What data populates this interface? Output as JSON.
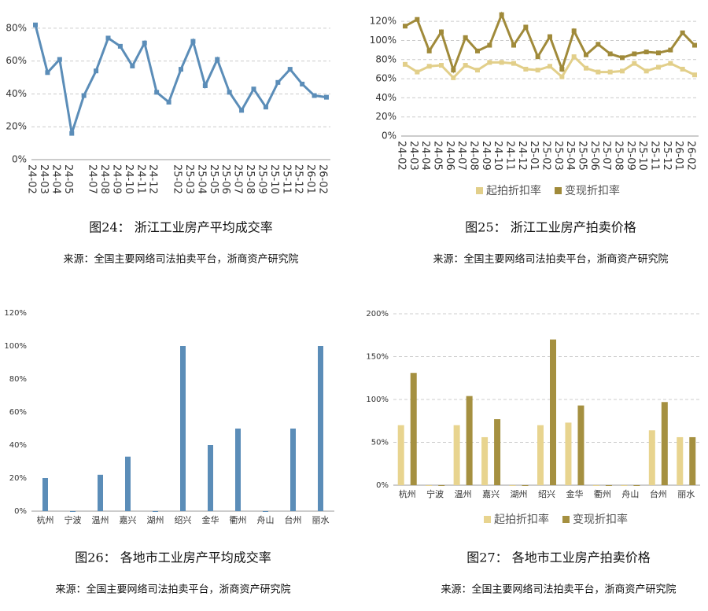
{
  "chart_data": [
    {
      "type": "line",
      "caption": "图24：  浙江工业房产平均成交率",
      "source": "来源：全国主要网络司法拍卖平台，浙商资产研究院",
      "categories": [
        "24-02",
        "24-03",
        "24-04",
        "24-05",
        null,
        "24-07",
        "24-08",
        "24-09",
        "24-10",
        "24-11",
        "24-12",
        null,
        "25-02",
        "25-03",
        "25-04",
        "25-05",
        "25-06",
        "25-07",
        "25-08",
        "25-09",
        "25-10",
        "25-11",
        "25-12",
        "26-01",
        "26-02"
      ],
      "series": [
        {
          "color": "#5b8db8",
          "values": [
            82,
            53,
            61,
            16,
            39,
            54,
            74,
            69,
            57,
            71,
            41,
            35,
            55,
            72,
            45,
            61,
            41,
            30,
            43,
            32,
            47,
            55,
            46,
            39,
            38
          ]
        }
      ],
      "ylim": [
        0,
        90
      ],
      "yticks": [
        {
          "value": 0,
          "label": "0%"
        },
        {
          "value": 20,
          "label": "20%"
        },
        {
          "value": 40,
          "label": "40%"
        },
        {
          "value": 60,
          "label": "60%"
        },
        {
          "value": 80,
          "label": "80%"
        }
      ],
      "grid": true
    },
    {
      "type": "line",
      "caption": "图25：  浙江工业房产拍卖价格",
      "source": "来源：全国主要网络司法拍卖平台，浙商资产研究院",
      "categories": [
        "24-02",
        "24-03",
        "24-04",
        "24-05",
        "24-06",
        "24-07",
        "24-08",
        "24-09",
        "24-10",
        "24-11",
        "24-12",
        "25-01",
        "25-02",
        "25-03",
        "25-04",
        "25-05",
        "25-06",
        "25-07",
        "25-08",
        "25-09",
        "25-10",
        "25-11",
        "25-12",
        "26-01",
        "26-02"
      ],
      "series": [
        {
          "name": "起拍折扣率",
          "color": "#e2cf8a",
          "values": [
            75,
            67,
            73,
            74,
            61,
            74,
            69,
            77,
            77,
            76,
            70,
            69,
            73,
            62,
            83,
            71,
            67,
            67,
            68,
            76,
            68,
            72,
            76,
            70,
            64
          ]
        },
        {
          "name": "变现折扣率",
          "color": "#a08a3a",
          "values": [
            115,
            122,
            89,
            109,
            69,
            103,
            89,
            95,
            127,
            95,
            114,
            83,
            104,
            70,
            110,
            85,
            96,
            86,
            82,
            86,
            88,
            87,
            90,
            108,
            95
          ]
        }
      ],
      "ylim": [
        0,
        130
      ],
      "yticks": [
        {
          "value": 0,
          "label": "0%"
        },
        {
          "value": 20,
          "label": "20%"
        },
        {
          "value": 40,
          "label": "40%"
        },
        {
          "value": 60,
          "label": "60%"
        },
        {
          "value": 80,
          "label": "80%"
        },
        {
          "value": 100,
          "label": "100%"
        },
        {
          "value": 120,
          "label": "120%"
        }
      ],
      "grid": true,
      "legend": "bottom"
    },
    {
      "type": "bar",
      "caption": "图26：  各地市工业房产平均成交率",
      "source": "来源：全国主要网络司法拍卖平台，浙商资产研究院",
      "categories": [
        "杭州",
        "宁波",
        "温州",
        "嘉兴",
        "湖州",
        "绍兴",
        "金华",
        "衢州",
        "舟山",
        "台州",
        "丽水"
      ],
      "series": [
        {
          "color": "#5b8db8",
          "values": [
            20,
            0,
            22,
            33,
            0,
            100,
            40,
            50,
            0,
            50,
            100
          ]
        }
      ],
      "ylim": [
        0,
        120
      ],
      "yticks": [
        {
          "value": 0,
          "label": "0%"
        },
        {
          "value": 20,
          "label": "20%"
        },
        {
          "value": 40,
          "label": "40%"
        },
        {
          "value": 60,
          "label": "60%"
        },
        {
          "value": 80,
          "label": "80%"
        },
        {
          "value": 100,
          "label": "100%"
        },
        {
          "value": 120,
          "label": "120%"
        }
      ],
      "grid": false
    },
    {
      "type": "bar",
      "caption": "图27：  各地市工业房产拍卖价格",
      "source": "来源：全国主要网络司法拍卖平台，浙商资产研究院",
      "categories": [
        "杭州",
        "宁波",
        "温州",
        "嘉兴",
        "湖州",
        "绍兴",
        "金华",
        "衢州",
        "舟山",
        "台州",
        "丽水"
      ],
      "series": [
        {
          "name": "起拍折扣率",
          "color": "#e8d48f",
          "values": [
            70,
            0,
            70,
            56,
            0,
            70,
            73,
            0,
            0,
            64,
            56
          ]
        },
        {
          "name": "变现折扣率",
          "color": "#a59040",
          "values": [
            131,
            0,
            104,
            77,
            0,
            170,
            93,
            0,
            0,
            97,
            56
          ]
        }
      ],
      "ylim": [
        0,
        200
      ],
      "yticks": [
        {
          "value": 0,
          "label": "0%"
        },
        {
          "value": 50,
          "label": "50%"
        },
        {
          "value": 100,
          "label": "100%"
        },
        {
          "value": 150,
          "label": "150%"
        },
        {
          "value": 200,
          "label": "200%"
        }
      ],
      "grid": true,
      "legend": "bottom"
    }
  ]
}
